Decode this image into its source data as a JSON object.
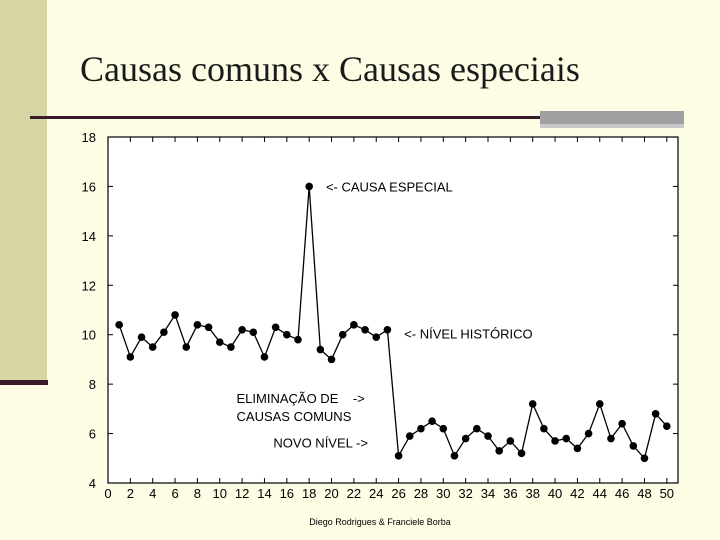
{
  "slide": {
    "title": "Causas comuns x Causas especiais",
    "footer": "Diego Rodrigues & Franciele Borba"
  },
  "colors": {
    "background": "#fdfde6",
    "accent_bar": "#d6d6a4",
    "rule": "#3a1a28",
    "plot_background": "#ffffff",
    "series": "#000000"
  },
  "chart_data": {
    "type": "line",
    "title": "",
    "xlabel": "",
    "ylabel": "",
    "xlim": [
      0,
      51
    ],
    "ylim": [
      4,
      18
    ],
    "x_ticks": [
      0,
      2,
      4,
      6,
      8,
      10,
      12,
      14,
      16,
      18,
      20,
      22,
      24,
      26,
      28,
      30,
      32,
      34,
      36,
      38,
      40,
      42,
      44,
      46,
      48,
      50
    ],
    "y_ticks": [
      4,
      6,
      8,
      10,
      12,
      14,
      16,
      18
    ],
    "grid": false,
    "marker": "circle",
    "series": [
      {
        "x": [
          1,
          2,
          3,
          4,
          5,
          6,
          7,
          8,
          9,
          10,
          11,
          12,
          13,
          14,
          15,
          16,
          17,
          18,
          19,
          20,
          21,
          22,
          23,
          24,
          25,
          26,
          27,
          28,
          29,
          30,
          31,
          32,
          33,
          34,
          35,
          36,
          37,
          38,
          39,
          40,
          41,
          42,
          43,
          44,
          45,
          46,
          47,
          48,
          49,
          50
        ],
        "values": [
          10.4,
          9.1,
          9.9,
          9.5,
          10.1,
          10.8,
          9.5,
          10.4,
          10.3,
          9.7,
          9.5,
          10.2,
          10.1,
          9.1,
          10.3,
          10.0,
          9.8,
          16.0,
          9.4,
          9.0,
          10.0,
          10.4,
          10.2,
          9.9,
          10.2,
          5.1,
          5.9,
          6.2,
          6.5,
          6.2,
          5.1,
          5.8,
          6.2,
          5.9,
          5.3,
          5.7,
          5.2,
          7.2,
          6.2,
          5.7,
          5.8,
          5.4,
          6.0,
          7.2,
          5.8,
          6.4,
          5.5,
          5.0,
          6.8,
          6.3
        ]
      }
    ],
    "annotations": [
      {
        "text": "<- CAUSA ESPECIAL",
        "lines": [
          "<- CAUSA ESPECIAL"
        ]
      },
      {
        "text": "<- NÍVEL HISTÓRICO",
        "lines": [
          "<- NÍVEL HISTÓRICO"
        ]
      },
      {
        "text": "ELIMINAÇÃO DE -> CAUSAS COMUNS",
        "lines": [
          "ELIMINAÇÃO DE    ->",
          "CAUSAS COMUNS"
        ]
      },
      {
        "text": "NOVO NÍVEL ->",
        "lines": [
          "NOVO NÍVEL ->"
        ]
      }
    ]
  }
}
